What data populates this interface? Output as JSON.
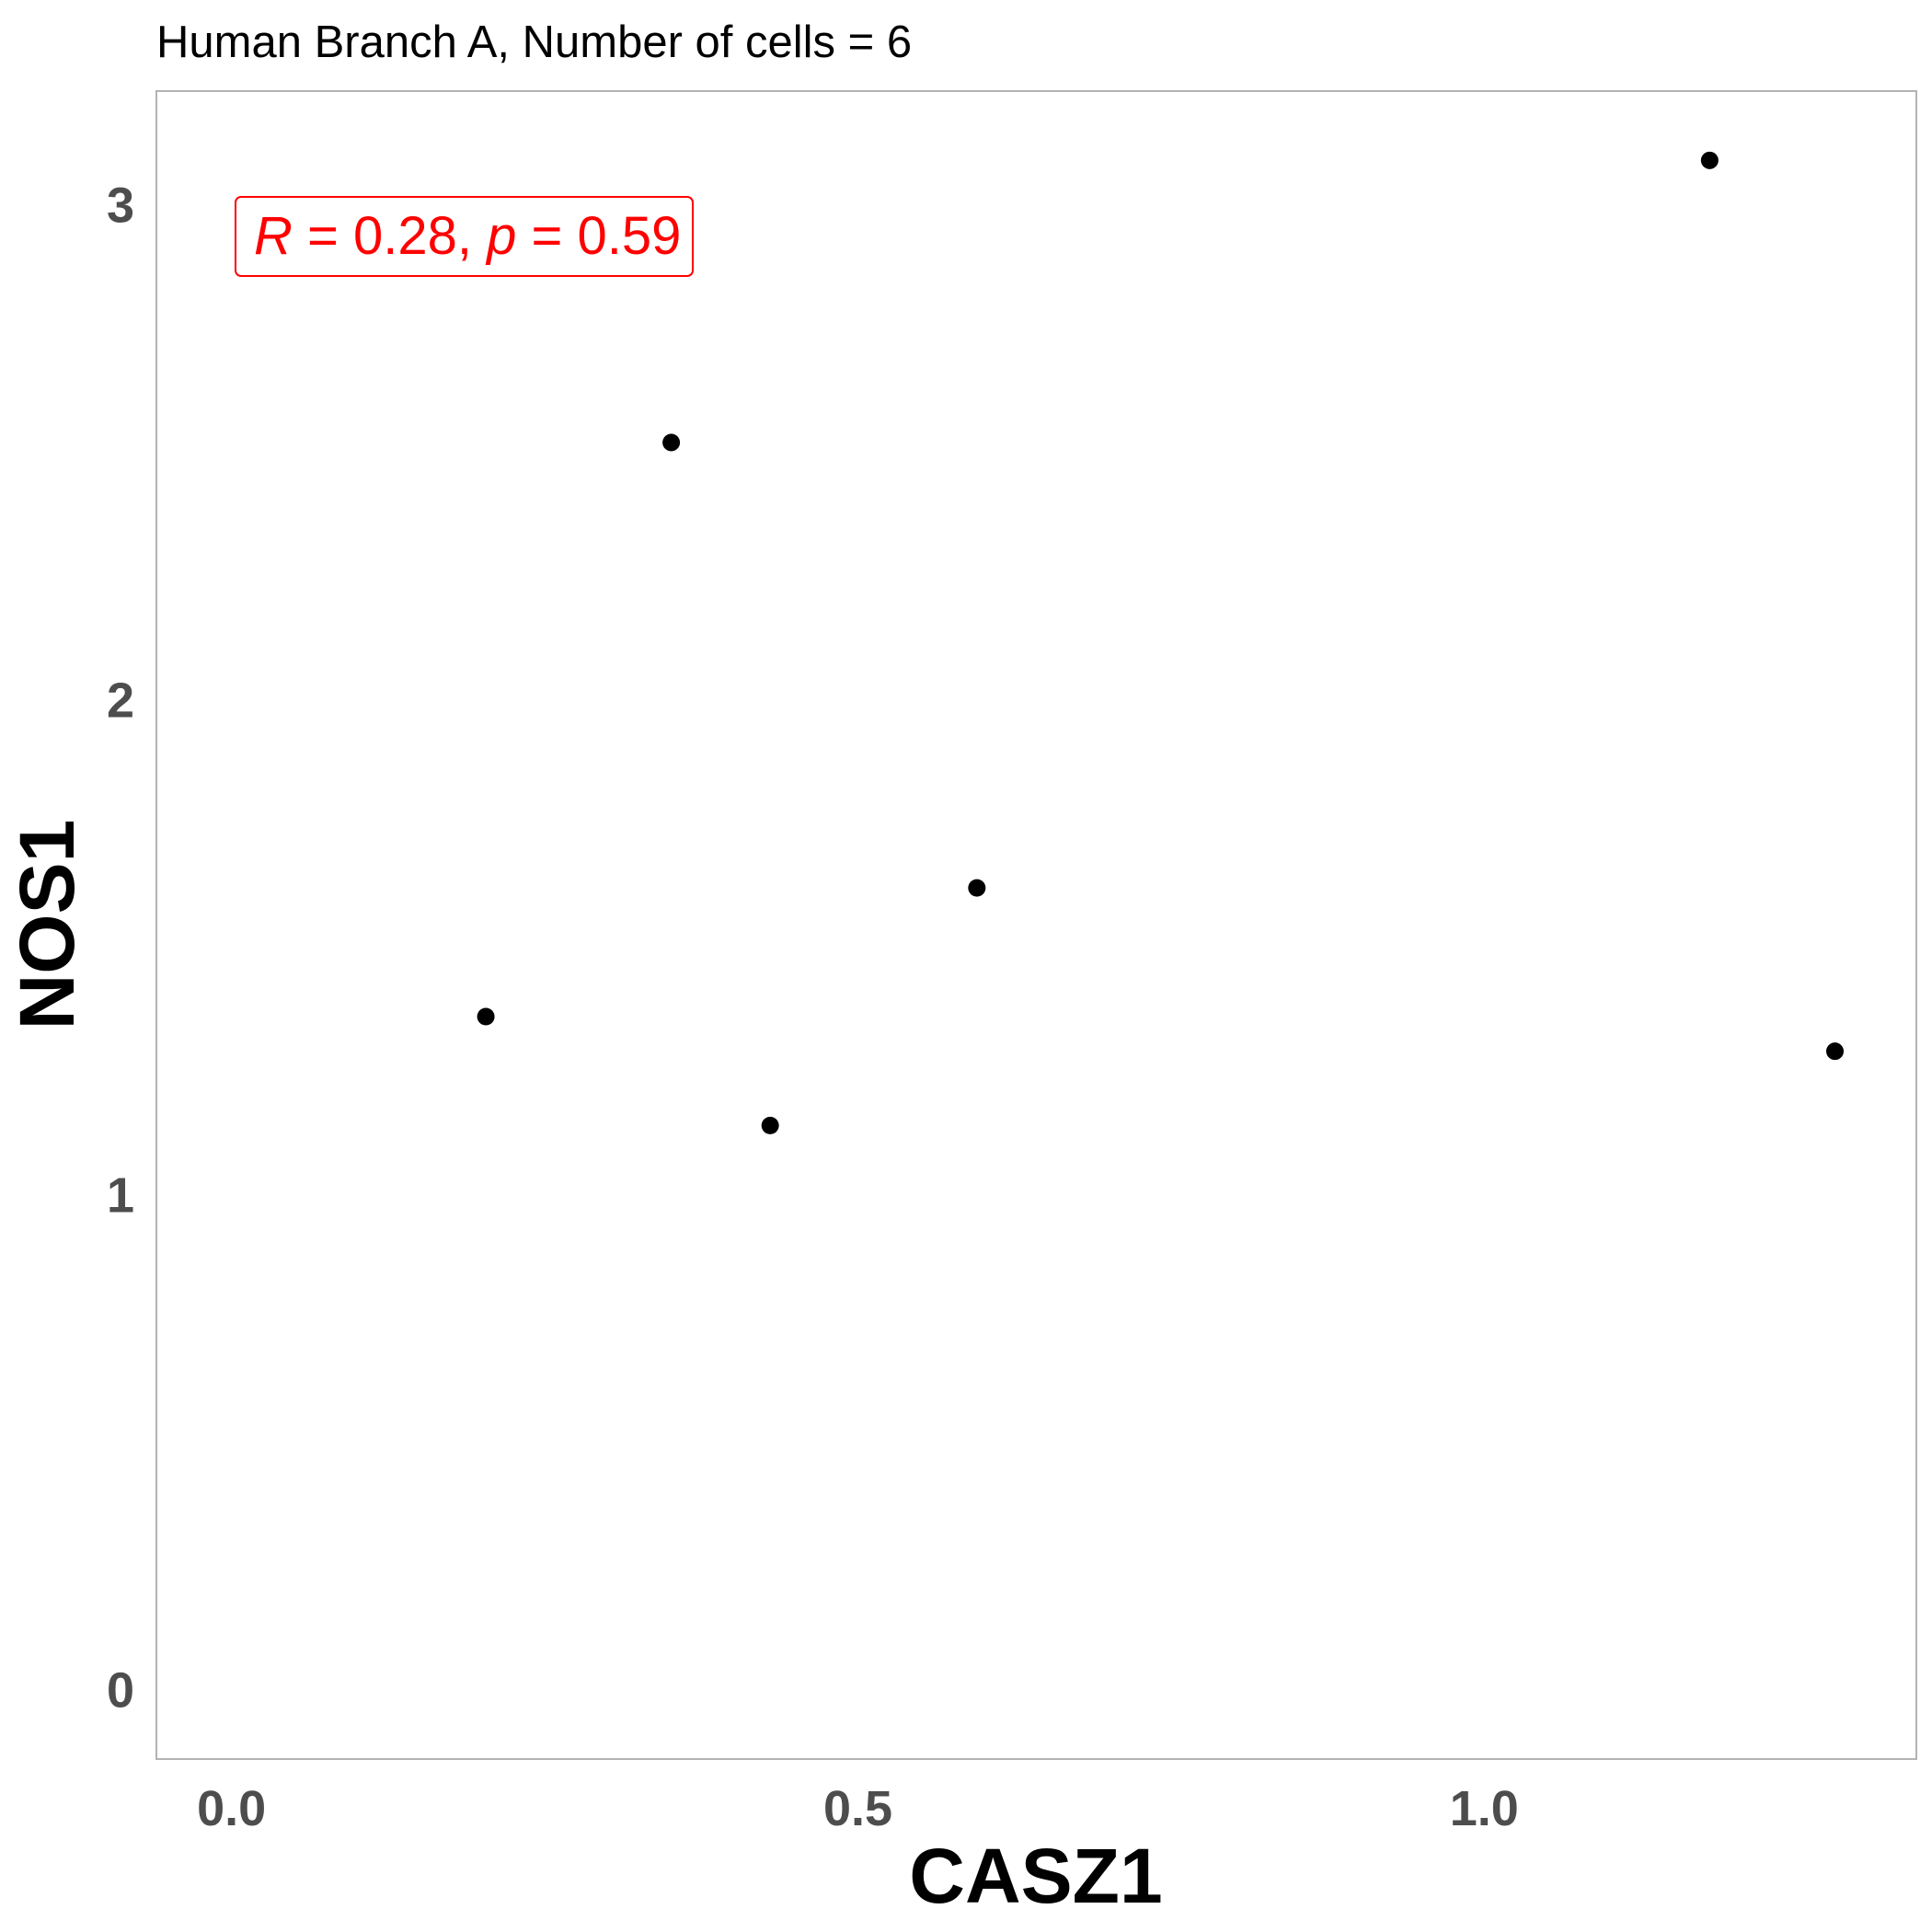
{
  "chart_data": {
    "type": "scatter",
    "title": "Human Branch A, Number of cells = 6",
    "xlabel": "CASZ1",
    "ylabel": "NOS1",
    "xlim": [
      -0.06,
      1.345
    ],
    "ylim": [
      -0.14,
      3.23
    ],
    "x_ticks": [
      {
        "value": 0.0,
        "label": "0.0"
      },
      {
        "value": 0.5,
        "label": "0.5"
      },
      {
        "value": 1.0,
        "label": "1.0"
      }
    ],
    "y_ticks": [
      {
        "value": 0,
        "label": "0"
      },
      {
        "value": 1,
        "label": "1"
      },
      {
        "value": 2,
        "label": "2"
      },
      {
        "value": 3,
        "label": "3"
      }
    ],
    "points": [
      {
        "x": 0.203,
        "y": 1.36
      },
      {
        "x": 0.351,
        "y": 2.52
      },
      {
        "x": 0.43,
        "y": 1.14
      },
      {
        "x": 0.595,
        "y": 1.62
      },
      {
        "x": 1.18,
        "y": 3.09
      },
      {
        "x": 1.28,
        "y": 1.29
      }
    ],
    "annotation": {
      "r_symbol": "R",
      "r_text": " = 0.28, ",
      "p_symbol": "p",
      "p_text": " = 0.59",
      "color": "#ff0000"
    },
    "point_color": "#000000",
    "panel_border_color": "#b3b3b3",
    "grid": false
  }
}
